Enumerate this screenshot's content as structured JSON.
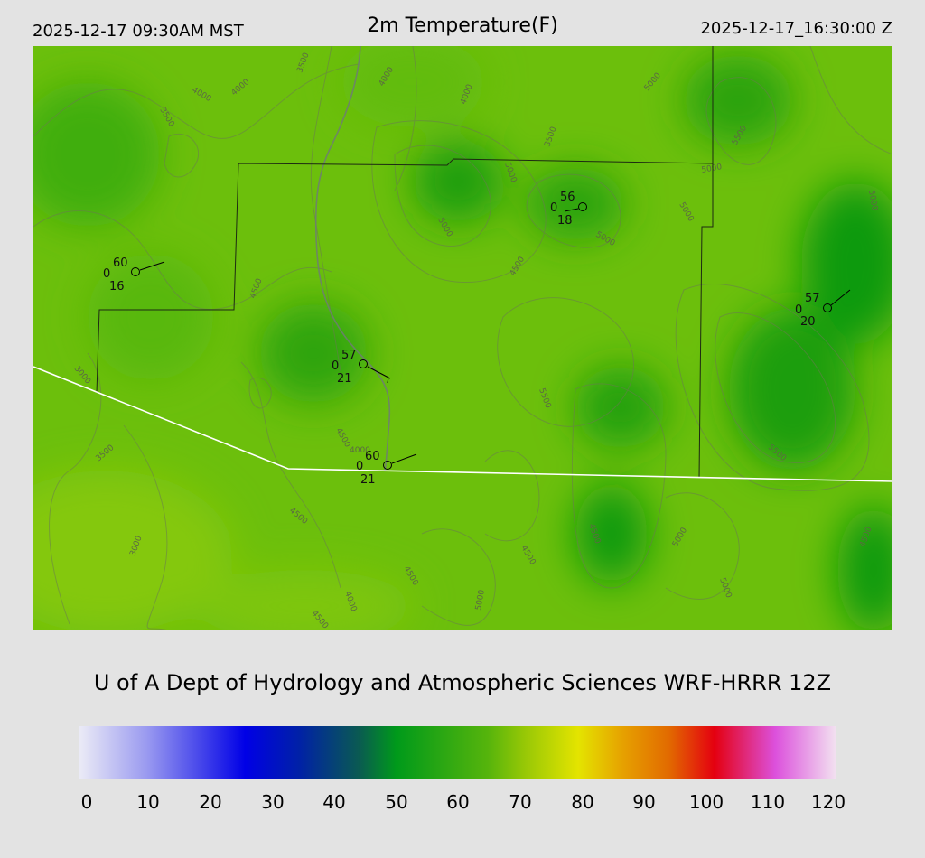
{
  "header": {
    "local_time": "2025-12-17 09:30AM MST",
    "title": "2m Temperature(F)",
    "utc_time": "2025-12-17_16:30:00 Z"
  },
  "map": {
    "contour_labels": [
      "3500",
      "4000",
      "4000",
      "3500",
      "4000",
      "3500",
      "4000",
      "3000",
      "4500",
      "5000",
      "5000",
      "5000",
      "4500",
      "4500",
      "4500",
      "4000",
      "4500",
      "5000",
      "5000",
      "5000",
      "5500",
      "5000",
      "4500",
      "5000",
      "5500",
      "5500",
      "3500",
      "3000",
      "4500",
      "4000",
      "4500",
      "5000",
      "4500",
      "5000"
    ],
    "stations": [
      {
        "temp": "60",
        "left": "0",
        "dew": "16"
      },
      {
        "temp": "56",
        "left": "0",
        "dew": "18"
      },
      {
        "temp": "57",
        "left": "0",
        "dew": "21"
      },
      {
        "temp": "60",
        "left": "0",
        "dew": "21"
      },
      {
        "temp": "57",
        "left": "0",
        "dew": "20"
      }
    ]
  },
  "credit": "U of A Dept of Hydrology and Atmospheric Sciences WRF-HRRR 12Z",
  "colorbar": {
    "ticks": [
      "0",
      "10",
      "20",
      "30",
      "40",
      "50",
      "60",
      "70",
      "80",
      "90",
      "100",
      "110",
      "120"
    ]
  },
  "colors": {
    "background": "#e3e3e3",
    "map_green_light": "#78c40a",
    "map_green_dark": "#0e9a10",
    "state_line": "#ffffff"
  }
}
